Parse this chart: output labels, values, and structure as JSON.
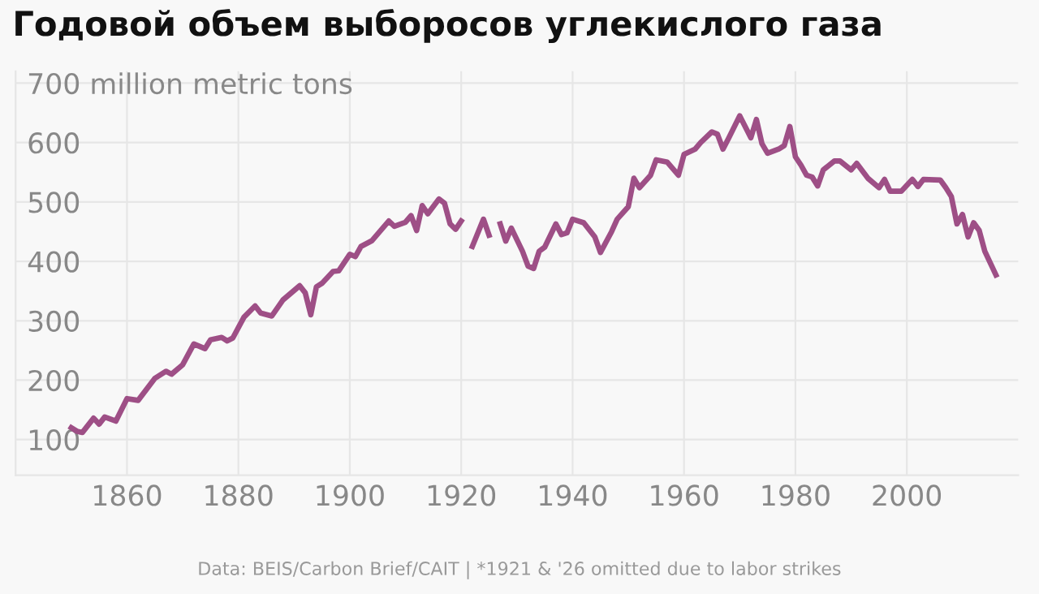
{
  "chart_data": {
    "type": "line",
    "title": "Годовой объем выборосов углекислого газа",
    "x": [
      1850,
      1851,
      1852,
      1854,
      1855,
      1856,
      1858,
      1860,
      1862,
      1865,
      1867,
      1868,
      1870,
      1872,
      1874,
      1875,
      1877,
      1878,
      1879,
      1881,
      1883,
      1884,
      1886,
      1888,
      1891,
      1892,
      1893,
      1894,
      1895,
      1897,
      1898,
      1900,
      1901,
      1902,
      1904,
      1907,
      1908,
      1910,
      1911,
      1912,
      1913,
      1914,
      1916,
      1917,
      1918,
      1919,
      1920,
      1921,
      1922,
      1924,
      1925,
      1926,
      1927,
      1928,
      1929,
      1931,
      1932,
      1933,
      1934,
      1935,
      1937,
      1938,
      1939,
      1940,
      1942,
      1944,
      1945,
      1947,
      1948,
      1950,
      1951,
      1952,
      1954,
      1955,
      1957,
      1959,
      1960,
      1962,
      1963,
      1965,
      1966,
      1967,
      1968,
      1970,
      1972,
      1973,
      1974,
      1975,
      1977,
      1978,
      1979,
      1980,
      1981,
      1982,
      1983,
      1984,
      1985,
      1987,
      1988,
      1990,
      1991,
      1993,
      1995,
      1996,
      1997,
      1999,
      2001,
      2002,
      2003,
      2006,
      2007,
      2008,
      2009,
      2010,
      2011,
      2012,
      2013,
      2014,
      2016
    ],
    "series": [
      {
        "color": "#9e4f86",
        "values": [
          120,
          114,
          112,
          136,
          126,
          138,
          131,
          169,
          166,
          203,
          215,
          210,
          226,
          261,
          253,
          268,
          272,
          266,
          271,
          306,
          325,
          313,
          308,
          335,
          359,
          347,
          310,
          357,
          363,
          383,
          384,
          412,
          408,
          425,
          435,
          468,
          459,
          466,
          477,
          452,
          494,
          480,
          505,
          498,
          463,
          454,
          468,
          null,
          425,
          471,
          444,
          null,
          463,
          434,
          456,
          417,
          392,
          388,
          417,
          424,
          463,
          445,
          448,
          471,
          465,
          441,
          415,
          450,
          471,
          492,
          540,
          524,
          545,
          571,
          567,
          545,
          580,
          589,
          600,
          618,
          614,
          589,
          607,
          645,
          608,
          639,
          598,
          582,
          589,
          595,
          627,
          576,
          562,
          545,
          542,
          527,
          554,
          569,
          569,
          554,
          565,
          540,
          524,
          538,
          518,
          518,
          538,
          526,
          538,
          537,
          524,
          509,
          463,
          479,
          441,
          465,
          452,
          417,
          377
        ]
      }
    ],
    "xlim": [
      1840,
      2020
    ],
    "xticks": [
      1860,
      1880,
      1900,
      1920,
      1940,
      1960,
      1980,
      2000
    ],
    "ylim": [
      40,
      720
    ],
    "yticks": [
      100,
      200,
      300,
      400,
      500,
      600,
      {
        "value": 700,
        "label": "700 million metric tons"
      }
    ],
    "grid": true,
    "marker": "none",
    "line_style": "solid",
    "annotations": [
      "Data: BEIS/Carbon Brief/CAIT | *1921 & '26 omitted due to labor strikes"
    ]
  }
}
